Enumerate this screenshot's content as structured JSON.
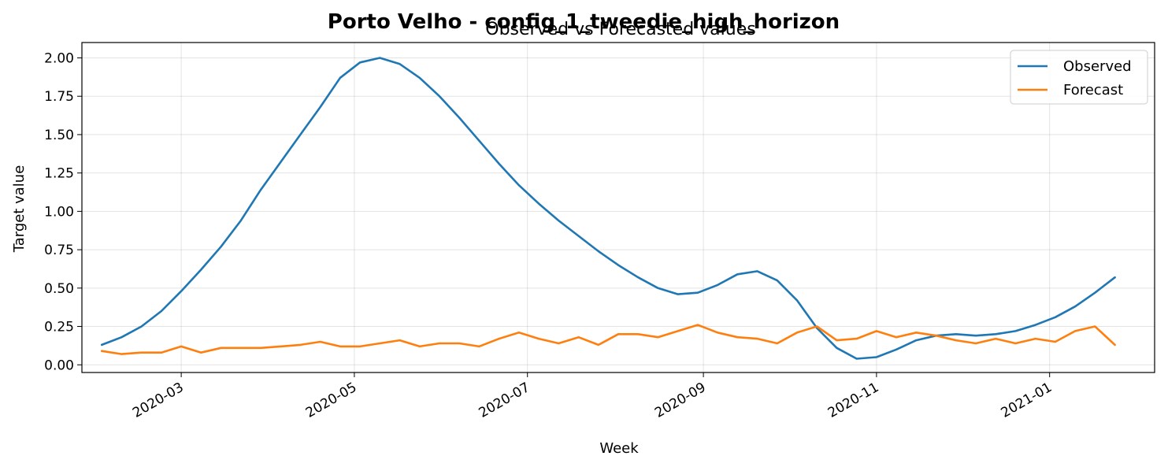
{
  "chart_data": {
    "type": "line",
    "title": "Porto Velho - config_1_tweedie_high_horizon",
    "subtitle": "Observed vs Forecasted values",
    "xlabel": "Week",
    "ylabel": "Target value",
    "x_ticks": [
      "2020-03",
      "2020-05",
      "2020-07",
      "2020-09",
      "2020-11",
      "2021-01"
    ],
    "y_ticks": [
      "0.00",
      "0.25",
      "0.50",
      "0.75",
      "1.00",
      "1.25",
      "1.50",
      "1.75",
      "2.00"
    ],
    "xlim": [
      "2020-01-26",
      "2021-02-07"
    ],
    "ylim": [
      -0.05,
      2.1
    ],
    "grid": true,
    "legend_position": "top-right",
    "x": [
      "2020-02-02",
      "2020-02-09",
      "2020-02-16",
      "2020-02-23",
      "2020-03-01",
      "2020-03-08",
      "2020-03-15",
      "2020-03-22",
      "2020-03-29",
      "2020-04-05",
      "2020-04-12",
      "2020-04-19",
      "2020-04-26",
      "2020-05-03",
      "2020-05-10",
      "2020-05-17",
      "2020-05-24",
      "2020-05-31",
      "2020-06-07",
      "2020-06-14",
      "2020-06-21",
      "2020-06-28",
      "2020-07-05",
      "2020-07-12",
      "2020-07-19",
      "2020-07-26",
      "2020-08-02",
      "2020-08-09",
      "2020-08-16",
      "2020-08-23",
      "2020-08-30",
      "2020-09-06",
      "2020-09-13",
      "2020-09-20",
      "2020-09-27",
      "2020-10-04",
      "2020-10-11",
      "2020-10-18",
      "2020-10-25",
      "2020-11-01",
      "2020-11-08",
      "2020-11-15",
      "2020-11-22",
      "2020-11-29",
      "2020-12-06",
      "2020-12-13",
      "2020-12-20",
      "2020-12-27",
      "2021-01-03",
      "2021-01-10",
      "2021-01-17",
      "2021-01-24"
    ],
    "series": [
      {
        "name": "Observed",
        "color": "#1f77b4",
        "values": [
          0.13,
          0.18,
          0.25,
          0.35,
          0.48,
          0.62,
          0.77,
          0.94,
          1.14,
          1.32,
          1.5,
          1.68,
          1.87,
          1.97,
          2.0,
          1.96,
          1.87,
          1.75,
          1.61,
          1.46,
          1.31,
          1.17,
          1.05,
          0.94,
          0.84,
          0.74,
          0.65,
          0.57,
          0.5,
          0.46,
          0.47,
          0.52,
          0.59,
          0.61,
          0.55,
          0.42,
          0.24,
          0.11,
          0.04,
          0.05,
          0.1,
          0.16,
          0.19,
          0.2,
          0.19,
          0.2,
          0.22,
          0.26,
          0.31,
          0.38,
          0.47,
          0.57
        ]
      },
      {
        "name": "Forecast",
        "color": "#ff7f0e",
        "values": [
          0.09,
          0.07,
          0.08,
          0.08,
          0.12,
          0.08,
          0.11,
          0.11,
          0.11,
          0.12,
          0.13,
          0.15,
          0.12,
          0.12,
          0.14,
          0.16,
          0.12,
          0.14,
          0.14,
          0.12,
          0.17,
          0.21,
          0.17,
          0.14,
          0.18,
          0.13,
          0.2,
          0.2,
          0.18,
          0.22,
          0.26,
          0.21,
          0.18,
          0.17,
          0.14,
          0.21,
          0.25,
          0.16,
          0.17,
          0.22,
          0.18,
          0.21,
          0.19,
          0.16,
          0.14,
          0.17,
          0.14,
          0.17,
          0.15,
          0.22,
          0.25,
          0.13
        ]
      }
    ]
  }
}
